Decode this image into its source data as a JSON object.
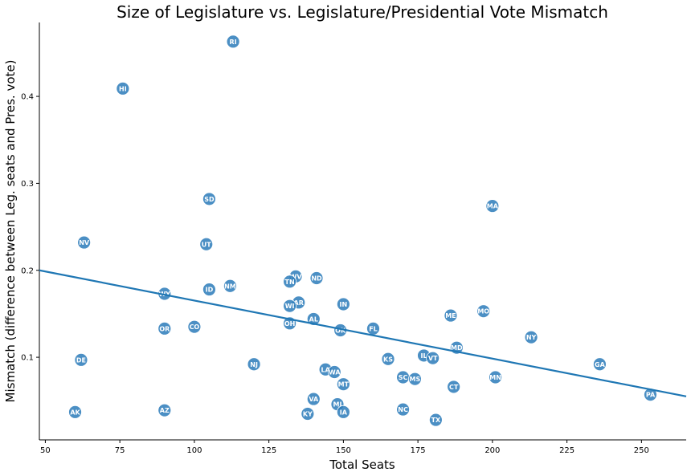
{
  "chart_data": {
    "type": "scatter",
    "title": "Size of Legislature vs. Legislature/Presidential Vote Mismatch",
    "xlabel": "Total Seats",
    "ylabel": "Mismatch (difference between Leg. seats and Pres. vote)",
    "xlim": [
      48,
      265
    ],
    "ylim": [
      0.005,
      0.485
    ],
    "x_ticks": [
      50,
      75,
      100,
      125,
      150,
      175,
      200,
      225,
      250
    ],
    "x_tick_labels": [
      "50",
      "75",
      "100",
      "125",
      "150",
      "175",
      "200",
      "225",
      "250"
    ],
    "y_ticks": [
      0.1,
      0.2,
      0.3,
      0.4
    ],
    "y_tick_labels": [
      "0.1",
      "0.2",
      "0.3",
      "0.4"
    ],
    "grid": false,
    "point_color": "#2b7bba",
    "line_color": "#1f77b4",
    "regression_line": {
      "x": [
        48,
        265
      ],
      "y": [
        0.2,
        0.055
      ]
    },
    "points": [
      {
        "label": "RI",
        "x": 113,
        "y": 0.463
      },
      {
        "label": "HI",
        "x": 76,
        "y": 0.409
      },
      {
        "label": "SD",
        "x": 105,
        "y": 0.282
      },
      {
        "label": "MA",
        "x": 200,
        "y": 0.274
      },
      {
        "label": "NV",
        "x": 63,
        "y": 0.232
      },
      {
        "label": "UT",
        "x": 104,
        "y": 0.23
      },
      {
        "label": "WV",
        "x": 134,
        "y": 0.193
      },
      {
        "label": "ND",
        "x": 141,
        "y": 0.191
      },
      {
        "label": "TN",
        "x": 132,
        "y": 0.187
      },
      {
        "label": "NM",
        "x": 112,
        "y": 0.182
      },
      {
        "label": "ID",
        "x": 105,
        "y": 0.178
      },
      {
        "label": "WY",
        "x": 90,
        "y": 0.173
      },
      {
        "label": "AR",
        "x": 135,
        "y": 0.163
      },
      {
        "label": "IN",
        "x": 150,
        "y": 0.161
      },
      {
        "label": "WI",
        "x": 132,
        "y": 0.159
      },
      {
        "label": "MO",
        "x": 197,
        "y": 0.153
      },
      {
        "label": "ME",
        "x": 186,
        "y": 0.148
      },
      {
        "label": "AL",
        "x": 140,
        "y": 0.144
      },
      {
        "label": "OH",
        "x": 132,
        "y": 0.139
      },
      {
        "label": "CO",
        "x": 100,
        "y": 0.135
      },
      {
        "label": "OR",
        "x": 90,
        "y": 0.133
      },
      {
        "label": "FL",
        "x": 160,
        "y": 0.133
      },
      {
        "label": "OK",
        "x": 149,
        "y": 0.131
      },
      {
        "label": "NY",
        "x": 213,
        "y": 0.123
      },
      {
        "label": "MD",
        "x": 188,
        "y": 0.111
      },
      {
        "label": "IL",
        "x": 177,
        "y": 0.102
      },
      {
        "label": "VT",
        "x": 180,
        "y": 0.099
      },
      {
        "label": "KS",
        "x": 165,
        "y": 0.098
      },
      {
        "label": "DE",
        "x": 62,
        "y": 0.097
      },
      {
        "label": "NJ",
        "x": 120,
        "y": 0.092
      },
      {
        "label": "GA",
        "x": 236,
        "y": 0.092
      },
      {
        "label": "LA",
        "x": 144,
        "y": 0.086
      },
      {
        "label": "WA",
        "x": 147,
        "y": 0.083
      },
      {
        "label": "MN",
        "x": 201,
        "y": 0.077
      },
      {
        "label": "SC",
        "x": 170,
        "y": 0.077
      },
      {
        "label": "MS",
        "x": 174,
        "y": 0.075
      },
      {
        "label": "MT",
        "x": 150,
        "y": 0.069
      },
      {
        "label": "CT",
        "x": 187,
        "y": 0.066
      },
      {
        "label": "PA",
        "x": 253,
        "y": 0.057
      },
      {
        "label": "VA",
        "x": 140,
        "y": 0.052
      },
      {
        "label": "MI",
        "x": 148,
        "y": 0.046
      },
      {
        "label": "NC",
        "x": 170,
        "y": 0.04
      },
      {
        "label": "AZ",
        "x": 90,
        "y": 0.039
      },
      {
        "label": "IA",
        "x": 150,
        "y": 0.037
      },
      {
        "label": "AK",
        "x": 60,
        "y": 0.037
      },
      {
        "label": "KY",
        "x": 138,
        "y": 0.035
      },
      {
        "label": "TX",
        "x": 181,
        "y": 0.028
      }
    ]
  }
}
